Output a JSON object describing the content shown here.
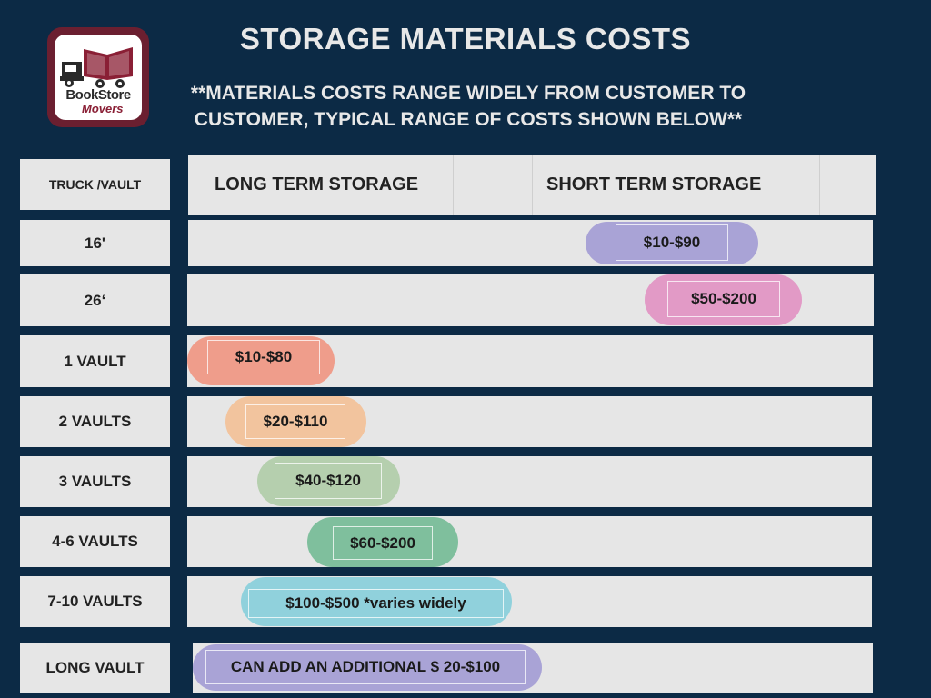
{
  "logo": {
    "line1": "BookStore",
    "line2": "Movers"
  },
  "title": "STORAGE MATERIALS COSTS",
  "subtitle": "**MATERIALS COSTS RANGE WIDELY FROM CUSTOMER TO CUSTOMER,  TYPICAL RANGE OF COSTS SHOWN BELOW**",
  "table": {
    "header_col0": "TRUCK /VAULT",
    "header_long": "LONG TERM STORAGE",
    "header_short": "SHORT TERM STORAGE"
  },
  "rows": [
    {
      "label": "16'",
      "range": "$10-$90",
      "color": "#a9a3d6"
    },
    {
      "label": "26‘",
      "range": "$50-$200",
      "color": "#e29ac6"
    },
    {
      "label": "1 VAULT",
      "range": "$10-$80",
      "color": "#ef9d8b"
    },
    {
      "label": "2 VAULTS",
      "range": "$20-$110",
      "color": "#f2c49e"
    },
    {
      "label": "3 VAULTS",
      "range": "$40-$120",
      "color": "#b5cfae"
    },
    {
      "label": "4-6 VAULTS",
      "range": "$60-$200",
      "color": "#7fbf9d"
    },
    {
      "label": "7-10 VAULTS",
      "range": "$100-$500 *varies widely",
      "color": "#90d1dc"
    },
    {
      "label": "LONG VAULT",
      "range": "CAN ADD AN ADDITIONAL $ 20-$100",
      "color": "#a9a3d6"
    }
  ],
  "chart_data": {
    "type": "table",
    "columns": [
      "TRUCK /VAULT",
      "LONG TERM STORAGE",
      "SHORT TERM STORAGE"
    ],
    "rows": [
      {
        "category": "16'",
        "storage": "SHORT TERM STORAGE",
        "range": "$10-$90"
      },
      {
        "category": "26‘",
        "storage": "SHORT TERM STORAGE",
        "range": "$50-$200"
      },
      {
        "category": "1 VAULT",
        "storage": "LONG TERM STORAGE",
        "range": "$10-$80"
      },
      {
        "category": "2 VAULTS",
        "storage": "LONG TERM STORAGE",
        "range": "$20-$110"
      },
      {
        "category": "3 VAULTS",
        "storage": "LONG TERM STORAGE",
        "range": "$40-$120"
      },
      {
        "category": "4-6 VAULTS",
        "storage": "LONG TERM STORAGE",
        "range": "$60-$200"
      },
      {
        "category": "7-10 VAULTS",
        "storage": "LONG TERM STORAGE",
        "range": "$100-$500 *varies widely"
      },
      {
        "category": "LONG VAULT",
        "storage": "LONG TERM STORAGE",
        "range": "CAN ADD AN ADDITIONAL $ 20-$100"
      }
    ]
  }
}
